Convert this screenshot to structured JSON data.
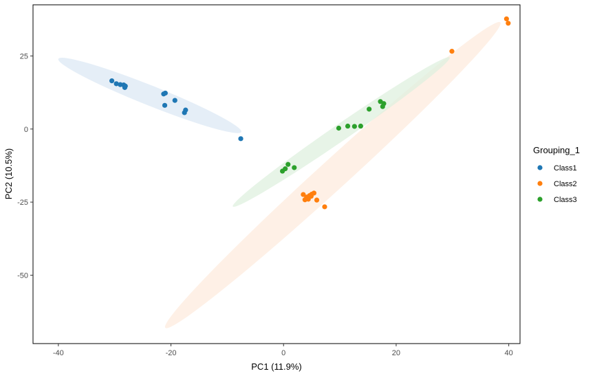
{
  "chart_data": {
    "type": "scatter",
    "xlabel": "PC1 (11.9%)",
    "ylabel": "PC2 (10.5%)",
    "xlim": [
      -44.5,
      42
    ],
    "ylim": [
      -73.4,
      42.5
    ],
    "x_ticks": [
      -40,
      -20,
      0,
      20,
      40
    ],
    "y_ticks": [
      25,
      0,
      -25,
      -50
    ],
    "x_tick_labels": [
      "-40",
      "-20",
      "0",
      "20",
      "40"
    ],
    "y_tick_labels": [
      "25",
      "0",
      "-25",
      "-50"
    ],
    "grid": false,
    "legend": {
      "title": "Grouping_1",
      "placement": "right"
    },
    "series": [
      {
        "name": "Class1",
        "color": "#1F77B4",
        "ellipse_fill": "#DCE8F4",
        "ellipse_endpoints": [
          [
            -40,
            24
          ],
          [
            -7.5,
            -1
          ]
        ],
        "ellipse_minor_halfwidth": 3.4,
        "points": [
          [
            -30.5,
            16.5
          ],
          [
            -29.7,
            15.5
          ],
          [
            -29.0,
            15.2
          ],
          [
            -28.4,
            15.1
          ],
          [
            -28.2,
            14.2
          ],
          [
            -28.1,
            14.7
          ],
          [
            -21.3,
            12.0
          ],
          [
            -21.0,
            12.3
          ],
          [
            -21.1,
            8.1
          ],
          [
            -19.3,
            9.8
          ],
          [
            -17.4,
            6.5
          ],
          [
            -17.6,
            5.6
          ],
          [
            -7.6,
            -3.3
          ]
        ]
      },
      {
        "name": "Class2",
        "color": "#FF7F0E",
        "ellipse_fill": "#FDEBDD",
        "ellipse_endpoints": [
          [
            -21,
            -68
          ],
          [
            38.5,
            36.5
          ]
        ],
        "ellipse_minor_halfwidth": 5.0,
        "points": [
          [
            39.6,
            37.7
          ],
          [
            39.9,
            36.2
          ],
          [
            29.9,
            26.6
          ],
          [
            3.5,
            -22.4
          ],
          [
            4.1,
            -23.3
          ],
          [
            3.8,
            -24.2
          ],
          [
            4.4,
            -24.0
          ],
          [
            4.6,
            -22.8
          ],
          [
            5.0,
            -22.3
          ],
          [
            5.4,
            -21.9
          ],
          [
            4.9,
            -23.0
          ],
          [
            5.9,
            -24.3
          ],
          [
            7.3,
            -26.6
          ]
        ]
      },
      {
        "name": "Class3",
        "color": "#2CA02C",
        "ellipse_fill": "#DFF0DF",
        "ellipse_endpoints": [
          [
            -9,
            -26.5
          ],
          [
            29.5,
            24.5
          ]
        ],
        "ellipse_minor_halfwidth": 2.8,
        "points": [
          [
            -0.2,
            -14.4
          ],
          [
            0.3,
            -13.6
          ],
          [
            0.8,
            -12.1
          ],
          [
            1.9,
            -13.2
          ],
          [
            9.8,
            0.3
          ],
          [
            11.4,
            1.0
          ],
          [
            12.6,
            0.9
          ],
          [
            13.7,
            1.0
          ],
          [
            15.2,
            6.8
          ],
          [
            17.2,
            9.4
          ],
          [
            17.8,
            8.7
          ],
          [
            17.6,
            7.7
          ]
        ]
      }
    ]
  }
}
